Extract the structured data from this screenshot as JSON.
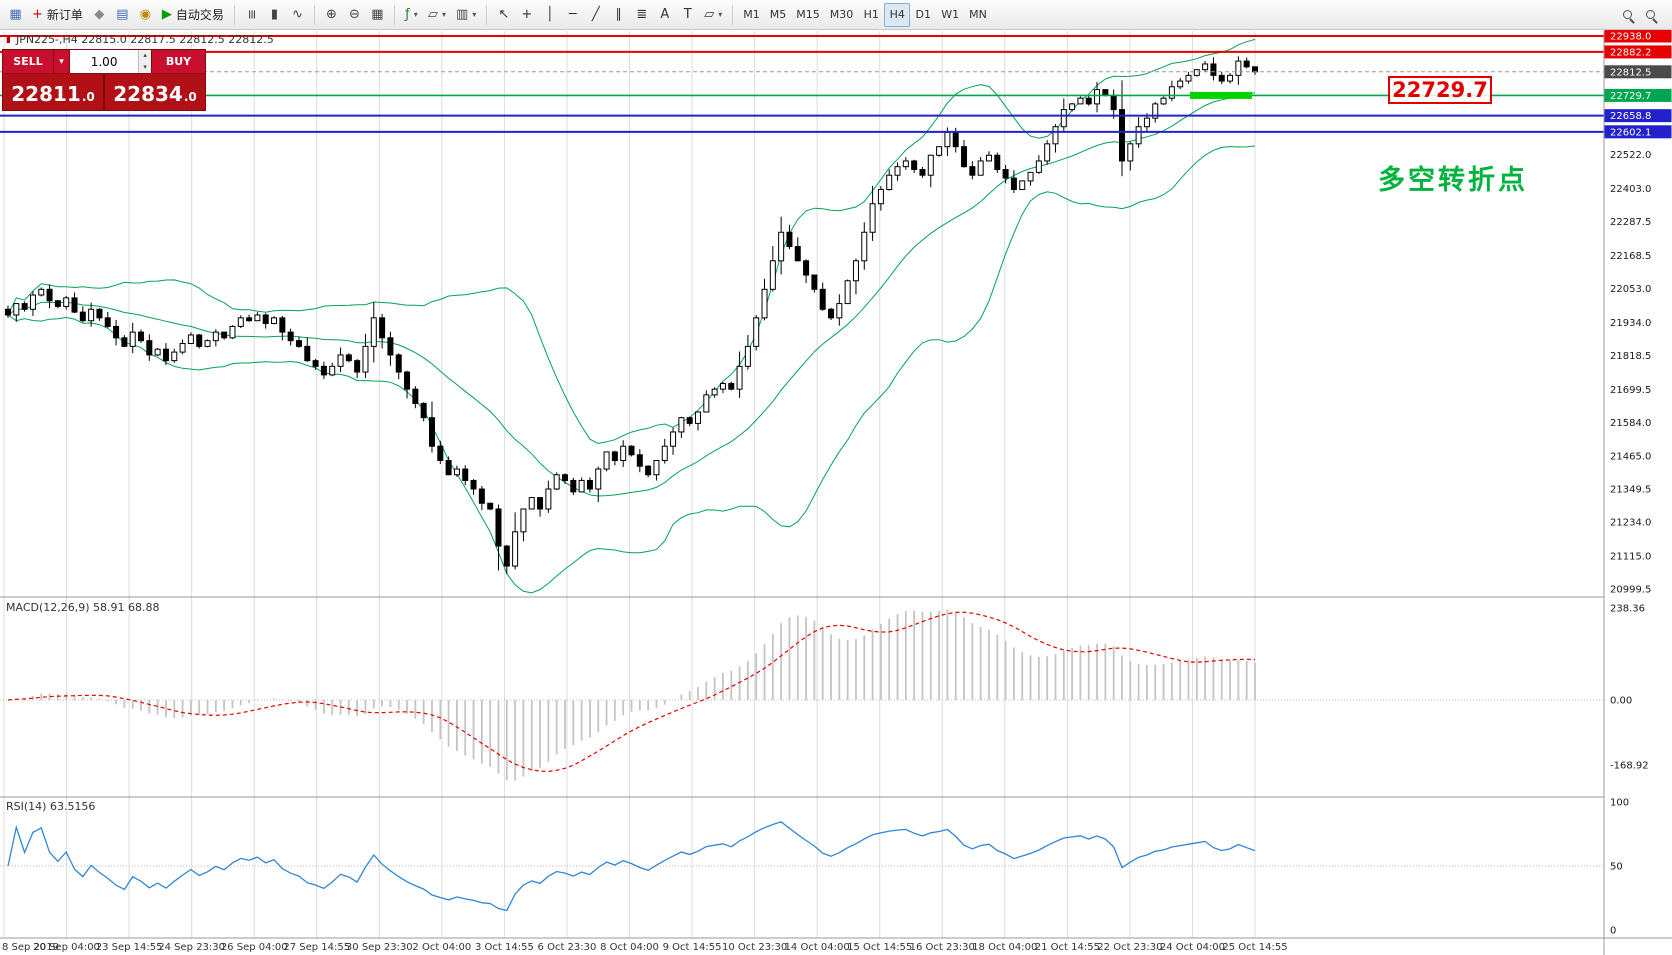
{
  "icons": {
    "caret": "▾",
    "spin_up": "▴",
    "spin_down": "▾",
    "mini": "▮"
  },
  "toolbar": {
    "groups": [
      {
        "name": "file",
        "items": [
          {
            "name": "chart-window-icon",
            "glyph": "▦",
            "color": "#3d6fb4"
          },
          {
            "name": "new-order-button",
            "glyph": "+",
            "color": "#cc0000",
            "label": "新订单"
          },
          {
            "name": "expert-advisors-icon",
            "glyph": "◆",
            "color": "#8a8a8a"
          },
          {
            "name": "market-icon",
            "glyph": "▤",
            "color": "#3d6fb4"
          },
          {
            "name": "signals-icon",
            "glyph": "◉",
            "color": "#c08a00"
          },
          {
            "name": "auto-trading-button",
            "glyph": "▶",
            "color": "#00a000",
            "label": "自动交易"
          }
        ]
      },
      {
        "name": "chart-types",
        "items": [
          {
            "name": "ohlc-bars-icon",
            "glyph": "≡",
            "color": "#444444",
            "rot": true
          },
          {
            "name": "candlestick-icon",
            "glyph": "▮",
            "color": "#444444"
          },
          {
            "name": "line-chart-icon",
            "glyph": "∿",
            "color": "#444444"
          }
        ]
      },
      {
        "name": "zoom",
        "items": [
          {
            "name": "zoom-in-icon",
            "glyph": "⊕",
            "color": "#444444"
          },
          {
            "name": "zoom-out-icon",
            "glyph": "⊖",
            "color": "#444444"
          },
          {
            "name": "tile-windows-icon",
            "glyph": "▦",
            "color": "#444444"
          }
        ]
      },
      {
        "name": "insert",
        "items": [
          {
            "name": "indicators-icon",
            "glyph": "ƒ",
            "color": "#2a7a2a",
            "caret": true
          },
          {
            "name": "objects-icon",
            "glyph": "▱",
            "color": "#444444",
            "caret": true
          },
          {
            "name": "templates-icon",
            "glyph": "▥",
            "color": "#444444",
            "caret": true
          }
        ]
      },
      {
        "name": "tools",
        "items": [
          {
            "name": "cursor-icon",
            "glyph": "↖",
            "color": "#333333"
          },
          {
            "name": "crosshair-icon",
            "glyph": "+",
            "color": "#333333"
          },
          {
            "name": "vertical-line-icon",
            "glyph": "│",
            "color": "#333333"
          },
          {
            "name": "horizontal-line-icon",
            "glyph": "─",
            "color": "#333333"
          },
          {
            "name": "trendline-icon",
            "glyph": "╱",
            "color": "#333333"
          },
          {
            "name": "channel-icon",
            "glyph": "∥",
            "color": "#333333"
          },
          {
            "name": "fibonacci-icon",
            "glyph": "≣",
            "color": "#333333"
          },
          {
            "name": "text-icon",
            "glyph": "A",
            "color": "#333333"
          },
          {
            "name": "label-icon",
            "glyph": "T",
            "color": "#333333"
          },
          {
            "name": "shapes-icon",
            "glyph": "▱",
            "color": "#333333",
            "caret": true
          }
        ]
      },
      {
        "name": "timeframes",
        "items": [
          {
            "name": "timeframe-m1",
            "label": "M1"
          },
          {
            "name": "timeframe-m5",
            "label": "M5"
          },
          {
            "name": "timeframe-m15",
            "label": "M15"
          },
          {
            "name": "timeframe-m30",
            "label": "M30"
          },
          {
            "name": "timeframe-h1",
            "label": "H1"
          },
          {
            "name": "timeframe-h4",
            "label": "H4",
            "active": true
          },
          {
            "name": "timeframe-d1",
            "label": "D1"
          },
          {
            "name": "timeframe-w1",
            "label": "W1"
          },
          {
            "name": "timeframe-mn",
            "label": "MN"
          }
        ]
      },
      {
        "name": "right",
        "items": [
          {
            "name": "search-symbol-icon",
            "mag": true
          },
          {
            "name": "data-window-icon",
            "mag": true
          }
        ]
      }
    ]
  },
  "chart": {
    "symbol_info": "JPN225-,H4  22815.0 22817.5 22812.5 22812.5",
    "trade_panel": {
      "sell_label": "SELL",
      "buy_label": "BUY",
      "volume": "1.00",
      "sell_price": "22811",
      "sell_price_frac": ".0",
      "buy_price": "22834",
      "buy_price_frac": ".0"
    },
    "macd_label": "MACD(12,26,9) 58.91 68.88",
    "rsi_label": "RSI(14) 63.5156",
    "big_price_label": "22729.7",
    "annotation": "多空转折点"
  },
  "chart_data": {
    "type": "candlestick",
    "symbol": "JPN225-",
    "timeframe": "H4",
    "colors": {
      "band": "#00a550",
      "rsi_line": "#2f86d6",
      "macd_hist": "#c4c4c4",
      "macd_signal": "#e60000",
      "grid": "#dcdcdc",
      "panel_red": "#b11116",
      "annotation_green": "#00b33c"
    },
    "price_axis": {
      "min": 20999.5,
      "max": 22938.0,
      "grid": [
        22522.0,
        22403.0,
        22287.5,
        22168.5,
        22053.0,
        21934.0,
        21818.5,
        21699.5,
        21584.0,
        21465.0,
        21349.5,
        21234.0,
        21115.0,
        20999.5
      ]
    },
    "levels": [
      {
        "price": 22938.0,
        "label": "22938.0",
        "color": "#e60000",
        "width": 2
      },
      {
        "price": 22882.2,
        "label": "22882.2",
        "color": "#e60000",
        "width": 2
      },
      {
        "price": 22812.5,
        "label": "22812.5",
        "color": "#4a4a4a",
        "width": 1,
        "style": "bid"
      },
      {
        "price": 22729.7,
        "label": "22729.7",
        "color": "#00a650",
        "width": 1.6
      },
      {
        "price": 22658.8,
        "label": "22658.8",
        "color": "#2222cc",
        "width": 2
      },
      {
        "price": 22602.1,
        "label": "22602.1",
        "color": "#2222cc",
        "width": 2
      }
    ],
    "highlight": {
      "price": 22729.7,
      "color": "#00d500"
    },
    "closes": [
      21960,
      22000,
      21980,
      22030,
      22050,
      22010,
      21990,
      22020,
      21970,
      21940,
      21980,
      21950,
      21920,
      21880,
      21850,
      21900,
      21870,
      21820,
      21840,
      21800,
      21830,
      21860,
      21890,
      21850,
      21870,
      21900,
      21880,
      21920,
      21950,
      21940,
      21960,
      21930,
      21950,
      21900,
      21870,
      21850,
      21800,
      21780,
      21750,
      21780,
      21820,
      21800,
      21760,
      21850,
      21950,
      21880,
      21820,
      21760,
      21700,
      21650,
      21600,
      21500,
      21450,
      21400,
      21420,
      21380,
      21350,
      21300,
      21280,
      21150,
      21080,
      21200,
      21280,
      21320,
      21280,
      21350,
      21400,
      21380,
      21340,
      21380,
      21350,
      21420,
      21480,
      21450,
      21500,
      21470,
      21430,
      21400,
      21450,
      21500,
      21550,
      21600,
      21580,
      21620,
      21680,
      21700,
      21720,
      21700,
      21780,
      21850,
      21950,
      22050,
      22150,
      22250,
      22200,
      22150,
      22100,
      22050,
      21980,
      21950,
      22000,
      22080,
      22150,
      22250,
      22350,
      22400,
      22450,
      22480,
      22500,
      22470,
      22450,
      22520,
      22550,
      22600,
      22550,
      22480,
      22450,
      22500,
      22520,
      22470,
      22440,
      22400,
      22430,
      22460,
      22500,
      22560,
      22620,
      22680,
      22700,
      22720,
      22700,
      22750,
      22730,
      22680,
      22500,
      22560,
      22620,
      22650,
      22700,
      22720,
      22760,
      22780,
      22800,
      22820,
      22840,
      22800,
      22780,
      22800,
      22850,
      22830,
      22812.5
    ],
    "time_labels": [
      "8 Sep 2019",
      "20 Sep 04:00",
      "23 Sep 14:55",
      "24 Sep 23:30",
      "26 Sep 04:00",
      "27 Sep 14:55",
      "30 Sep 23:30",
      "2 Oct 04:00",
      "3 Oct 14:55",
      "6 Oct 23:30",
      "8 Oct 04:00",
      "9 Oct 14:55",
      "10 Oct 23:30",
      "14 Oct 04:00",
      "15 Oct 14:55",
      "16 Oct 23:30",
      "18 Oct 04:00",
      "21 Oct 14:55",
      "22 Oct 23:30",
      "24 Oct 04:00",
      "25 Oct 14:55"
    ],
    "macd_scale": [
      {
        "label": "238.36",
        "value": 238.36
      },
      {
        "label": "0.00",
        "value": 0
      },
      {
        "label": "-168.92",
        "value": -168.92
      }
    ],
    "rsi_scale": [
      {
        "label": "100",
        "value": 100
      },
      {
        "label": "50",
        "value": 50
      },
      {
        "label": "0",
        "value": 0
      }
    ]
  }
}
